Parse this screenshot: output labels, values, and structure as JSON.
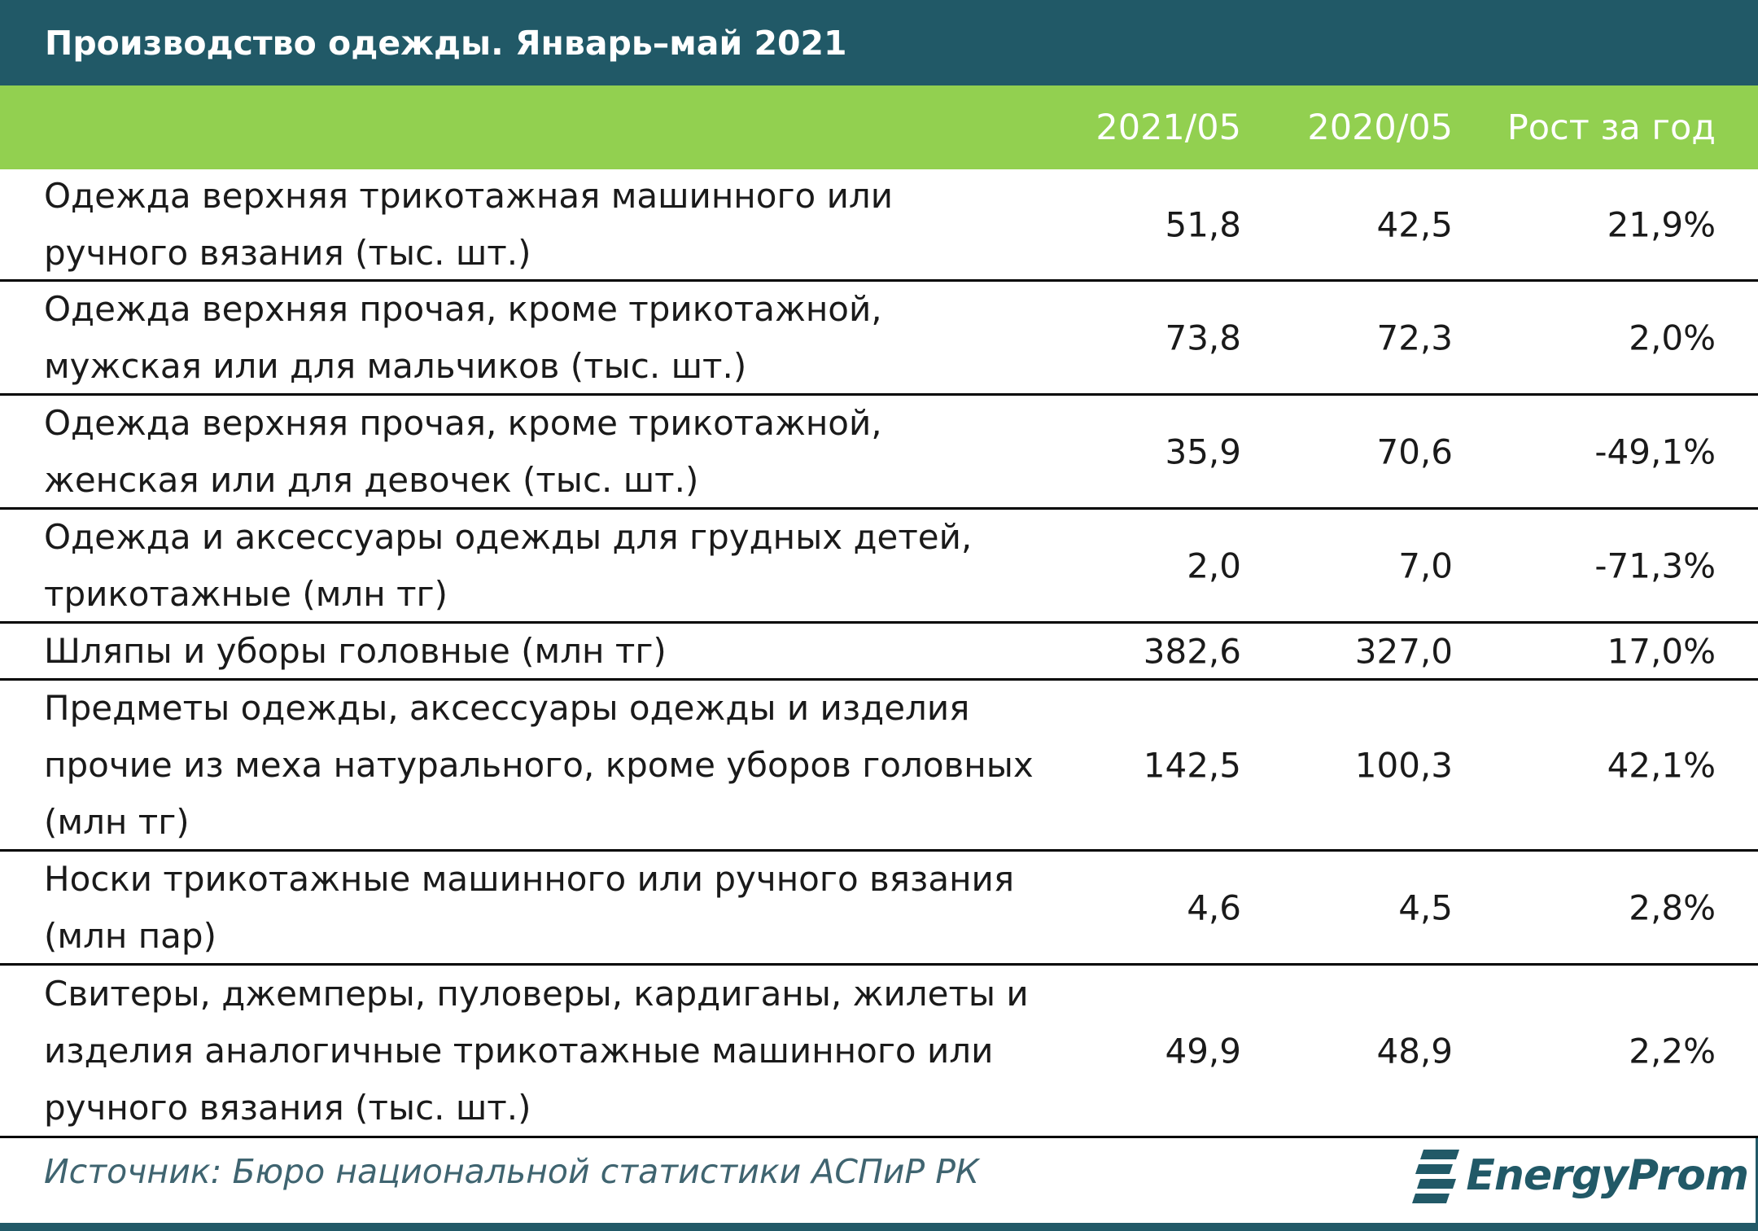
{
  "title": "Производство одежды. Январь–май 2021",
  "columns": [
    "2021/05",
    "2020/05",
    "Рост за год"
  ],
  "rows": [
    {
      "label": "Одежда верхняя трикотажная машинного или ручного вязания (тыс. шт.)",
      "v2021": "51,8",
      "v2020": "42,5",
      "growth": "21,9%"
    },
    {
      "label": "Одежда верхняя прочая, кроме трикотажной, мужская или для мальчиков (тыс. шт.)",
      "v2021": "73,8",
      "v2020": "72,3",
      "growth": "2,0%"
    },
    {
      "label": "Одежда верхняя прочая, кроме трикотажной, женская или для девочек (тыс. шт.)",
      "v2021": "35,9",
      "v2020": "70,6",
      "growth": "-49,1%"
    },
    {
      "label": "Одежда и аксессуары одежды для грудных детей, трикотажные (млн тг)",
      "v2021": "2,0",
      "v2020": "7,0",
      "growth": "-71,3%"
    },
    {
      "label": "Шляпы и уборы головные (млн тг)",
      "v2021": "382,6",
      "v2020": "327,0",
      "growth": "17,0%"
    },
    {
      "label": "Предметы одежды, аксессуары одежды и изделия прочие из меха натурального, кроме уборов головных (млн тг)",
      "v2021": "142,5",
      "v2020": "100,3",
      "growth": "42,1%"
    },
    {
      "label": "Носки трикотажные машинного или ручного вязания (млн пар)",
      "v2021": "4,6",
      "v2020": "4,5",
      "growth": "2,8%"
    },
    {
      "label": "Свитеры, джемперы, пуловеры, кардиганы, жилеты и изделия аналогичные трикотажные машинного или ручного вязания (тыс. шт.)",
      "v2021": "49,9",
      "v2020": "48,9",
      "growth": "2,2%"
    }
  ],
  "source": "Источник: Бюро национальной статистики АСПиР РК",
  "logo": {
    "text": "EnergyProm",
    "icon": "energyprom-logo-icon"
  },
  "colors": {
    "title_bg": "#215967",
    "header_bg": "#92d050",
    "header_text": "#ffffff",
    "source_text": "#3f6470"
  }
}
